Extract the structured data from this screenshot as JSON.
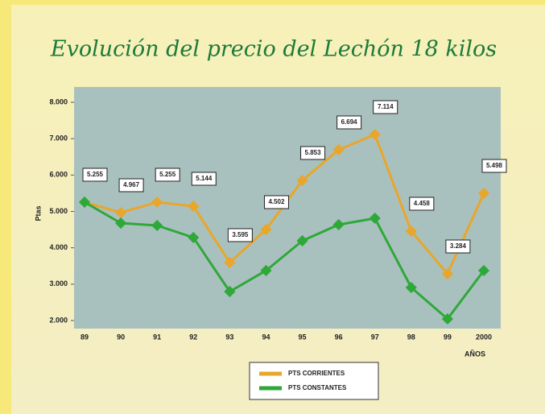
{
  "chart_data": {
    "type": "line",
    "title": "Evolución del precio del Lechón 18 kilos",
    "y_label": "Ptas",
    "x_label": "AÑOS",
    "categories": [
      "89",
      "90",
      "91",
      "92",
      "93",
      "94",
      "95",
      "96",
      "97",
      "98",
      "99",
      "2000"
    ],
    "series": [
      {
        "name": "PTS CORRIENTES",
        "color": "#e8a62c",
        "values": [
          5255,
          4967,
          5255,
          5144,
          3595,
          4502,
          5853,
          6694,
          7114,
          4458,
          3284,
          5498
        ],
        "value_labels": [
          "5.255",
          "4.967",
          "5.255",
          "5.144",
          "3.595",
          "4.502",
          "5.853",
          "6.694",
          "7.114",
          "4.458",
          "3.284",
          "5.498"
        ]
      },
      {
        "name": "PTS CONSTANTES",
        "color": "#2fa83a",
        "values": [
          5255,
          4679,
          4613,
          4281,
          2797,
          3373,
          4192,
          4635,
          4812,
          2908,
          2045,
          3373
        ]
      }
    ],
    "ylim": [
      2000,
      8000
    ],
    "yticks": [
      {
        "value": 2000,
        "label": "2.000"
      },
      {
        "value": 3000,
        "label": "3.000"
      },
      {
        "value": 4000,
        "label": "4.000"
      },
      {
        "value": 5000,
        "label": "5.000"
      },
      {
        "value": 6000,
        "label": "6.000"
      },
      {
        "value": 7000,
        "label": "7.000"
      },
      {
        "value": 8000,
        "label": "8.000"
      }
    ],
    "legend": "bottom"
  }
}
